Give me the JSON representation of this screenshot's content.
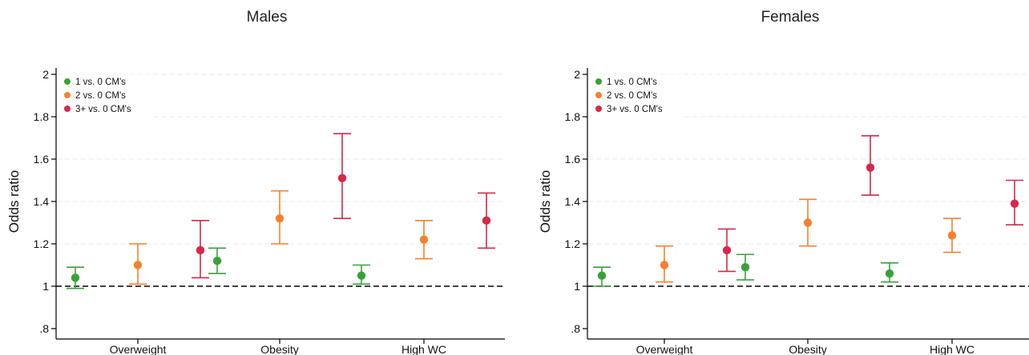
{
  "colors": {
    "series1": "#3aa13a",
    "series2": "#f5822a",
    "series3": "#d4294a",
    "axis": "#000000",
    "grid": "#e8e8e8",
    "reference": "#000000"
  },
  "chart_data": [
    {
      "type": "scatter",
      "title": "Males",
      "ylabel": "Odds ratio",
      "xlabel": "",
      "ylim": [
        0.8,
        2.0
      ],
      "yticks": [
        ".8",
        "1",
        "1.2",
        "1.4",
        "1.6",
        "1.8",
        "2"
      ],
      "reference_line": 1,
      "grid": true,
      "legend_position": "top-left",
      "categories": [
        "Overweight",
        "Obesity",
        "High WC"
      ],
      "series": [
        {
          "name": "1 vs. 0 CM's",
          "values": [
            1.04,
            1.12,
            1.05
          ],
          "lower": [
            0.99,
            1.06,
            1.01
          ],
          "upper": [
            1.09,
            1.18,
            1.1
          ]
        },
        {
          "name": "2 vs. 0 CM's",
          "values": [
            1.1,
            1.32,
            1.22
          ],
          "lower": [
            1.01,
            1.2,
            1.13
          ],
          "upper": [
            1.2,
            1.45,
            1.31
          ]
        },
        {
          "name": "3+ vs. 0 CM's",
          "values": [
            1.17,
            1.51,
            1.31
          ],
          "lower": [
            1.04,
            1.32,
            1.18
          ],
          "upper": [
            1.31,
            1.72,
            1.44
          ]
        }
      ]
    },
    {
      "type": "scatter",
      "title": "Females",
      "ylabel": "Odds ratio",
      "xlabel": "",
      "ylim": [
        0.8,
        2.0
      ],
      "yticks": [
        ".8",
        "1",
        "1.2",
        "1.4",
        "1.6",
        "1.8",
        "2"
      ],
      "reference_line": 1,
      "grid": true,
      "legend_position": "top-left",
      "categories": [
        "Overweight",
        "Obesity",
        "High WC"
      ],
      "series": [
        {
          "name": "1 vs. 0 CM's",
          "values": [
            1.05,
            1.09,
            1.06
          ],
          "lower": [
            1.0,
            1.03,
            1.02
          ],
          "upper": [
            1.09,
            1.15,
            1.11
          ]
        },
        {
          "name": "2 vs. 0 CM's",
          "values": [
            1.1,
            1.3,
            1.24
          ],
          "lower": [
            1.02,
            1.19,
            1.16
          ],
          "upper": [
            1.19,
            1.41,
            1.32
          ]
        },
        {
          "name": "3+ vs. 0 CM's",
          "values": [
            1.17,
            1.56,
            1.39
          ],
          "lower": [
            1.07,
            1.43,
            1.29
          ],
          "upper": [
            1.27,
            1.71,
            1.5
          ]
        }
      ]
    }
  ]
}
